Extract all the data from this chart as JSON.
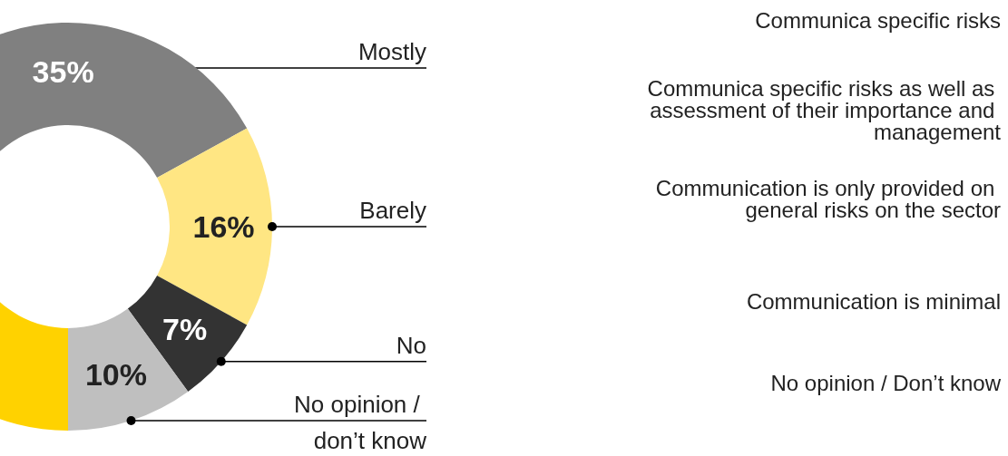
{
  "chart_data": {
    "type": "donut",
    "categories": [
      "Mostly",
      "Barely",
      "No",
      "No opinion / don’t know",
      null
    ],
    "values": [
      35,
      16,
      7,
      10,
      32
    ],
    "value_labels": [
      "35%",
      "16%",
      "7%",
      "10%",
      null
    ],
    "colors": [
      "#808080",
      "#ffe683",
      "#333333",
      "#bfbfbf",
      "#ffd200"
    ],
    "annotations": [
      "Communica specific risks",
      "Communica specific risks as well as assessment of their importance and management",
      "Communication is only provided on general risks on the sector",
      "Communication is minimal",
      "No opinion / Don’t know"
    ],
    "legend": false
  }
}
